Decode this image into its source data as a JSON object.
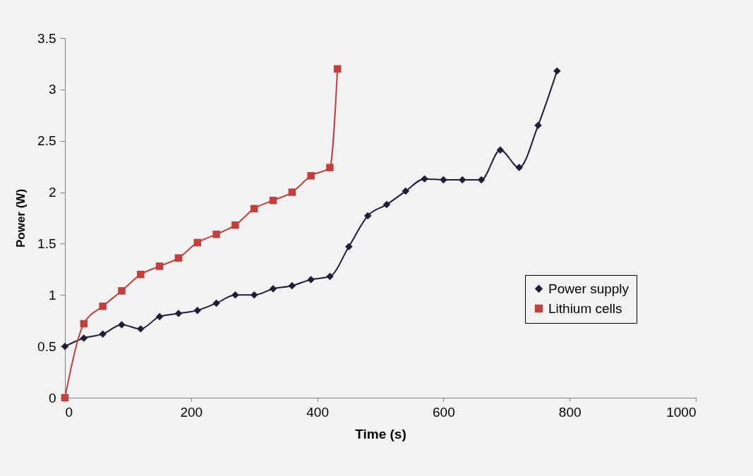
{
  "chart_data": {
    "type": "line",
    "xlabel": "Time (s)",
    "ylabel": "Power (W)",
    "xlim": [
      0,
      1000
    ],
    "xticks": [
      0,
      200,
      400,
      600,
      800,
      1000
    ],
    "ylim": [
      0,
      3.5
    ],
    "yticks": [
      0,
      0.5,
      1,
      1.5,
      2,
      2.5,
      3,
      3.5
    ],
    "grid": false,
    "legend": "right",
    "series": [
      {
        "name": "Power supply",
        "color": "#1e1e38",
        "marker": "diamond",
        "x": [
          0,
          30,
          60,
          90,
          120,
          150,
          180,
          210,
          240,
          270,
          300,
          330,
          360,
          390,
          420,
          450,
          480,
          510,
          540,
          570,
          600,
          630,
          660,
          690,
          720,
          750,
          780
        ],
        "values": [
          0.5,
          0.58,
          0.62,
          0.71,
          0.67,
          0.79,
          0.82,
          0.85,
          0.92,
          1.0,
          1.0,
          1.06,
          1.09,
          1.15,
          1.18,
          1.47,
          1.77,
          1.88,
          2.01,
          2.13,
          2.12,
          2.12,
          2.12,
          2.41,
          2.24,
          2.65,
          3.18
        ]
      },
      {
        "name": "Lithium cells",
        "color": "#c0403c",
        "marker": "square",
        "x": [
          0,
          30,
          60,
          90,
          120,
          150,
          180,
          210,
          240,
          270,
          300,
          330,
          360,
          390,
          420,
          432
        ],
        "values": [
          0,
          0.72,
          0.89,
          1.04,
          1.2,
          1.28,
          1.36,
          1.51,
          1.59,
          1.68,
          1.84,
          1.92,
          2.0,
          2.16,
          2.24,
          3.2
        ]
      }
    ]
  }
}
